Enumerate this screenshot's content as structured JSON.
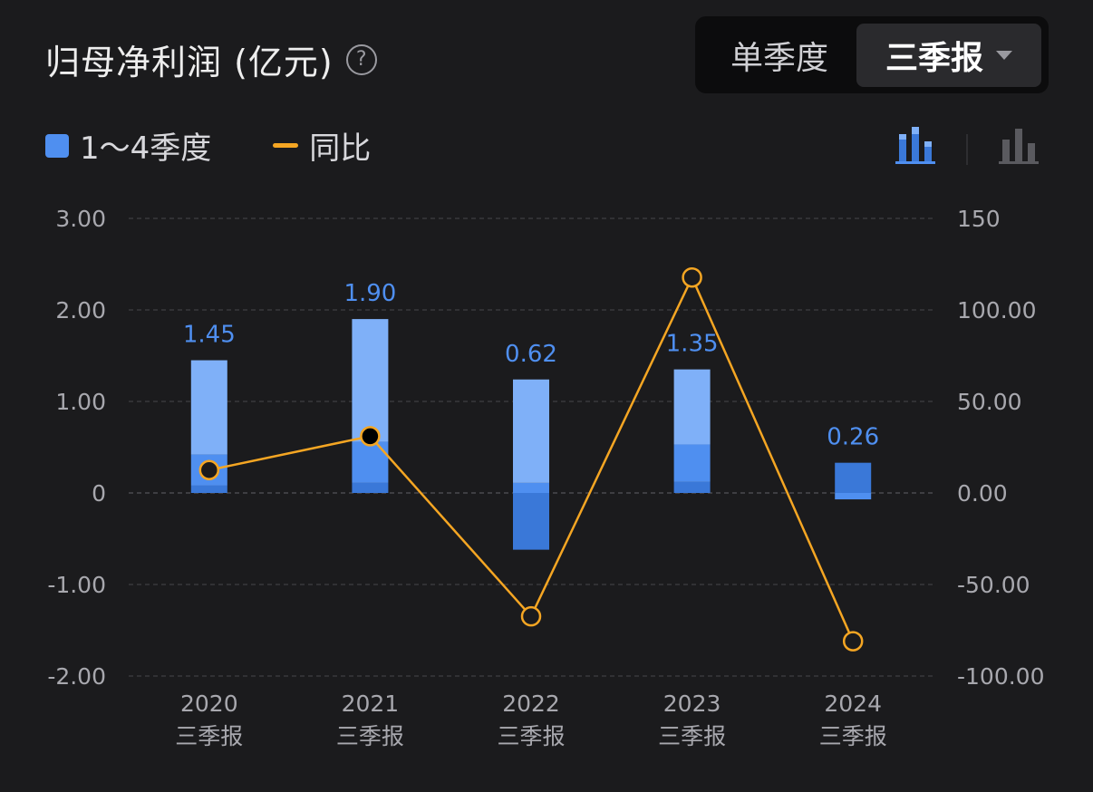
{
  "header": {
    "title": "归母净利润 (亿元)",
    "help_icon": "?",
    "period_toggle": {
      "options": [
        "单季度",
        "三季报"
      ],
      "selected": "三季报"
    }
  },
  "legend": {
    "bars_label": "1～4季度",
    "line_label": "同比"
  },
  "chart_data": {
    "type": "bar",
    "categories": [
      "2020\n三季报",
      "2021\n三季报",
      "2022\n三季报",
      "2023\n三季报",
      "2024\n三季报"
    ],
    "category_years": [
      "2020",
      "2021",
      "2022",
      "2023",
      "2024"
    ],
    "category_period": "三季报",
    "stacked_bars": [
      {
        "segments": [
          0.08,
          0.34,
          1.03
        ],
        "total": 1.45
      },
      {
        "segments": [
          0.11,
          0.45,
          1.34
        ],
        "total": 1.9
      },
      {
        "segments": [
          -0.62,
          0.11,
          1.13
        ],
        "total": 0.62
      },
      {
        "segments": [
          0.12,
          0.41,
          0.82
        ],
        "total": 1.35
      },
      {
        "segments": [
          0.33,
          -0.07
        ],
        "total": 0.26
      }
    ],
    "bar_labels": [
      "1.45",
      "1.90",
      "0.62",
      "1.35",
      "0.26"
    ],
    "series": [
      {
        "name": "同比",
        "axis": "right",
        "values": [
          12.5,
          31.0,
          -67.4,
          117.7,
          -81.0
        ]
      }
    ],
    "y_left": {
      "ylim": [
        -2,
        3
      ],
      "ticks": [
        "3.00",
        "2.00",
        "1.00",
        "0",
        "-1.00",
        "-2.00"
      ]
    },
    "y_right": {
      "ylim": [
        -100,
        150
      ],
      "ticks": [
        "150",
        "100.00",
        "50.00",
        "0.00",
        "-50.00",
        "-100.00"
      ]
    },
    "grid": true,
    "colors": {
      "q1": "#3a78d8",
      "q2": "#4f8ff0",
      "q3": "#7fb0f8",
      "line": "#f5a623",
      "label": "#4f8ff0"
    }
  }
}
